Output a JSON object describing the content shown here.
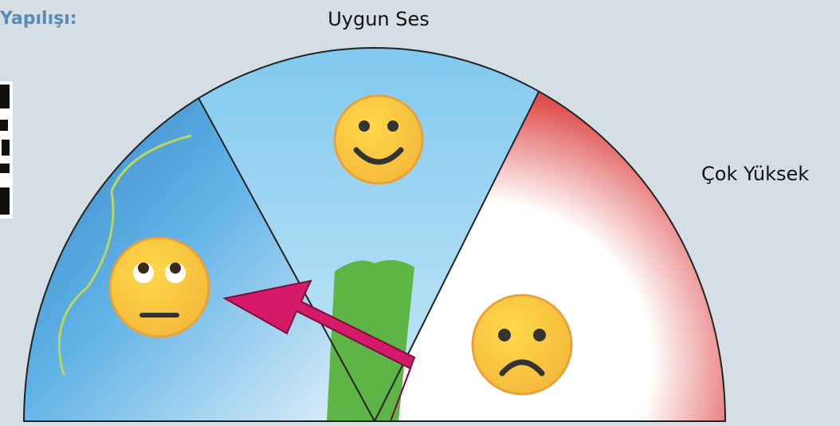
{
  "header": {
    "title": "Yapılışı:"
  },
  "labels": {
    "top": "Uygun Ses",
    "right": "Çok Yüksek"
  }
}
